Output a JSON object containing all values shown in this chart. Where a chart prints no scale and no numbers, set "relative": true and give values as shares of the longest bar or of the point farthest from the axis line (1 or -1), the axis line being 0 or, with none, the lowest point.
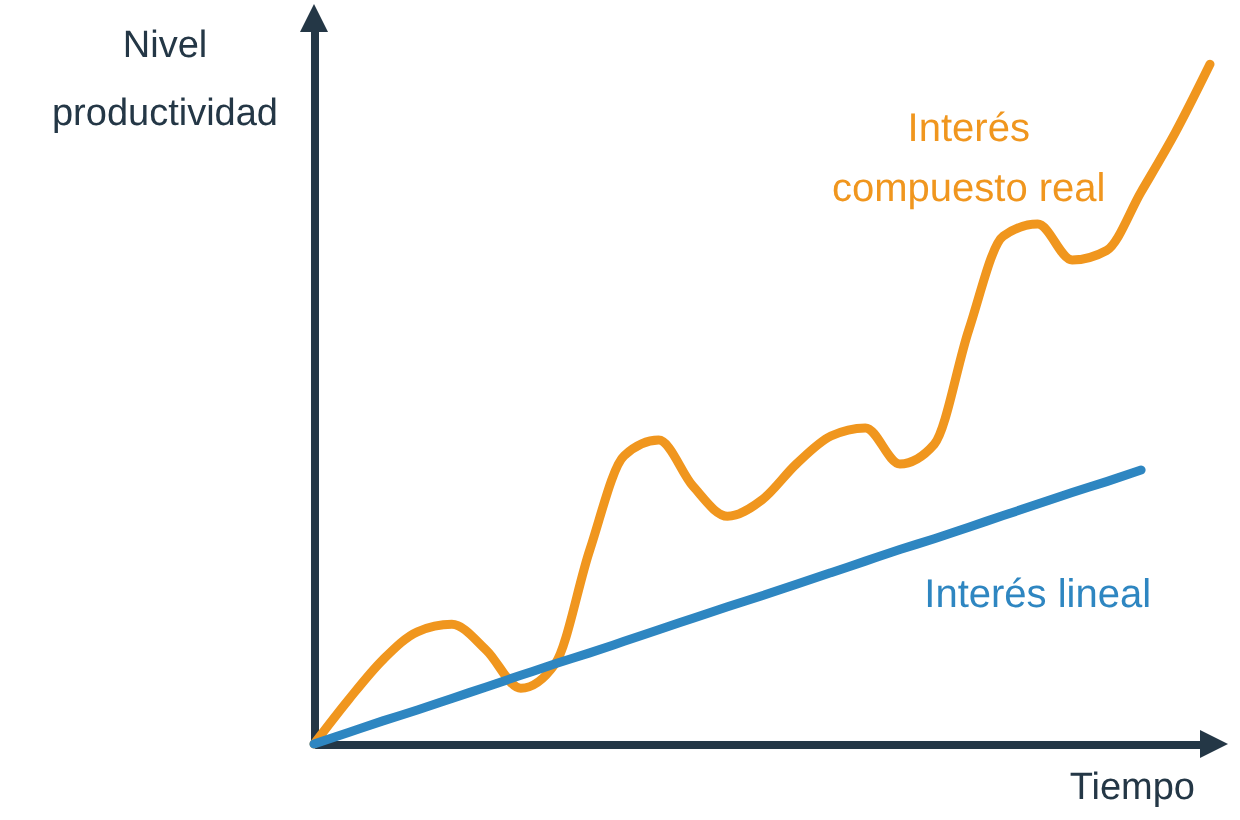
{
  "chart_data": {
    "type": "line",
    "relative": true,
    "xlabel": "Tiempo",
    "ylabel": "Nivel\nproductividad",
    "categories": [
      null,
      null,
      null,
      null,
      null,
      null,
      null,
      null,
      null,
      null,
      null,
      null,
      null,
      null,
      null,
      null,
      null,
      null,
      null,
      null,
      null,
      null,
      null,
      null,
      null,
      null,
      null
    ],
    "series": [
      {
        "name": "Interés\ncompuesto real",
        "color": "#f0961e",
        "values": [
          0,
          0.065,
          0.124,
          0.165,
          0.176,
          0.138,
          0.082,
          0.118,
          0.285,
          0.424,
          0.447,
          0.379,
          0.335,
          0.359,
          0.412,
          0.453,
          0.465,
          0.412,
          0.441,
          0.609,
          0.747,
          0.765,
          0.712,
          0.726,
          0.812,
          0.9,
          1
        ]
      },
      {
        "name": "Interés lineal",
        "color": "#2e86c1",
        "values": [
          0,
          0.017,
          0.034,
          0.05,
          0.067,
          0.084,
          0.101,
          0.118,
          0.134,
          0.151,
          0.168,
          0.185,
          0.202,
          0.218,
          0.235,
          0.252,
          0.269,
          0.286,
          0.302,
          0.319,
          0.336,
          0.353,
          0.37,
          0.386,
          0.403,
          null,
          null
        ]
      }
    ],
    "grid": false,
    "marker": "none",
    "line_style": "solid",
    "tick_labels": false
  }
}
